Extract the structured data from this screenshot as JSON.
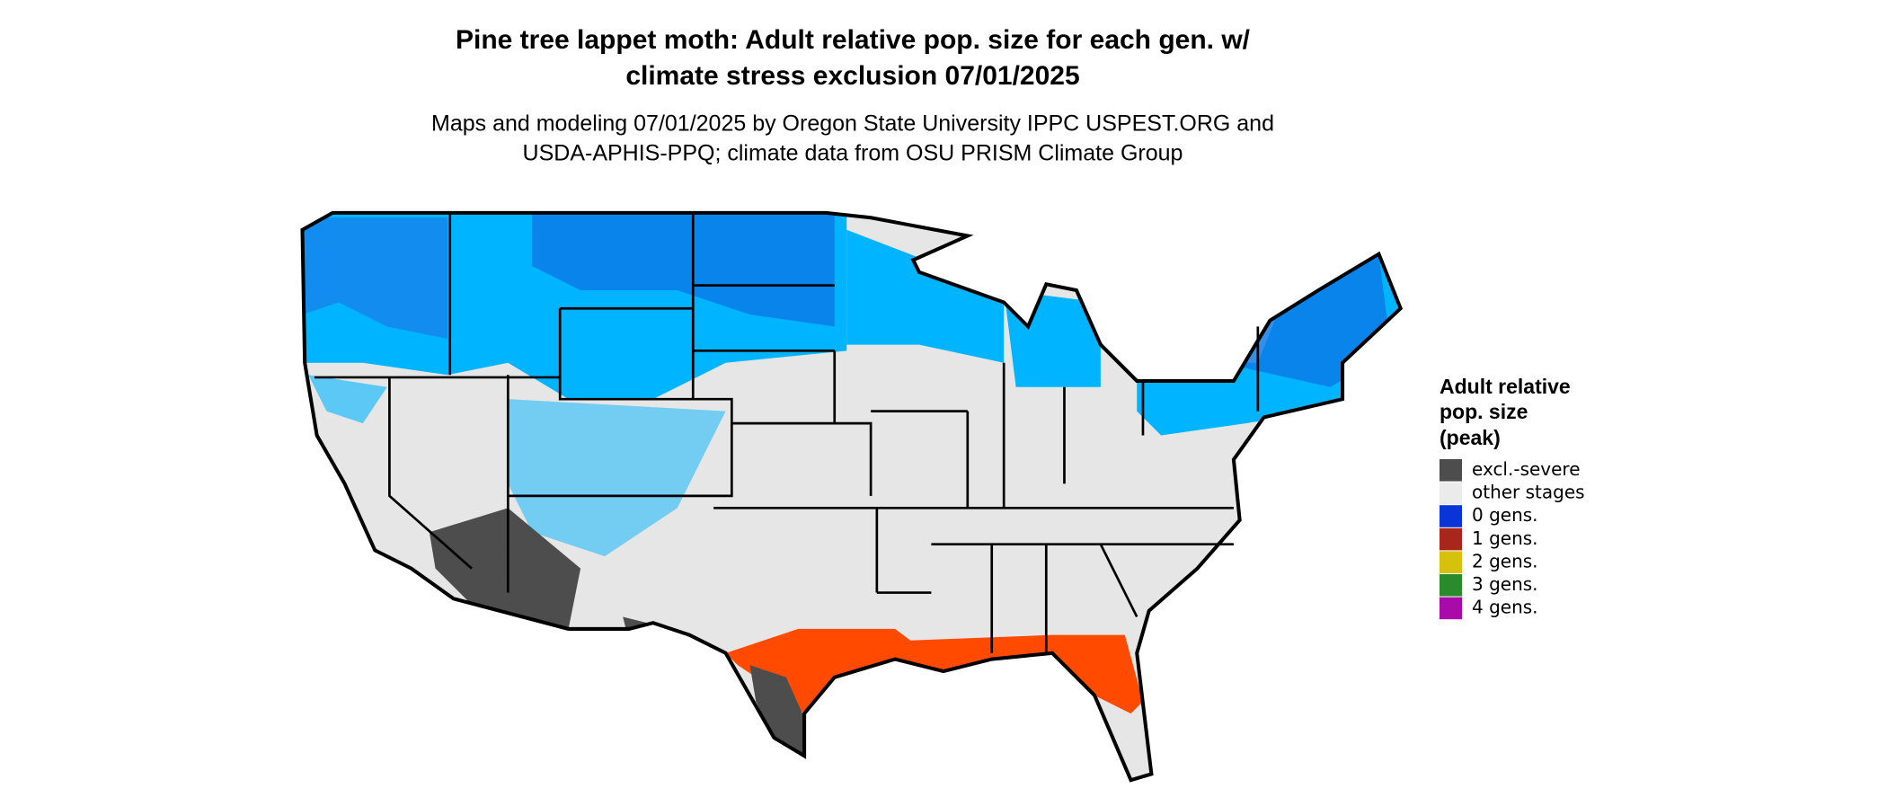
{
  "title": [
    "Pine tree lappet moth: Adult relative pop. size for each gen. w/",
    "climate stress exclusion 07/01/2025"
  ],
  "subtitle": [
    "Maps and modeling 07/01/2025 by Oregon State University IPPC USPEST.ORG and",
    "USDA-APHIS-PPQ; climate data from OSU PRISM Climate Group"
  ],
  "legend": {
    "title": [
      "Adult relative",
      "pop. size",
      "(peak)"
    ],
    "items": [
      {
        "label": "excl.-severe",
        "color": "#4d4d4d"
      },
      {
        "label": "other stages",
        "color": "#ebebeb"
      },
      {
        "label": "0 gens.",
        "color": "#0a35d6"
      },
      {
        "label": "1 gens.",
        "color": "#a8261b"
      },
      {
        "label": "2 gens.",
        "color": "#d6c20c"
      },
      {
        "label": "3 gens.",
        "color": "#2a8b2a"
      },
      {
        "label": "4 gens.",
        "color": "#a90bab"
      }
    ]
  }
}
